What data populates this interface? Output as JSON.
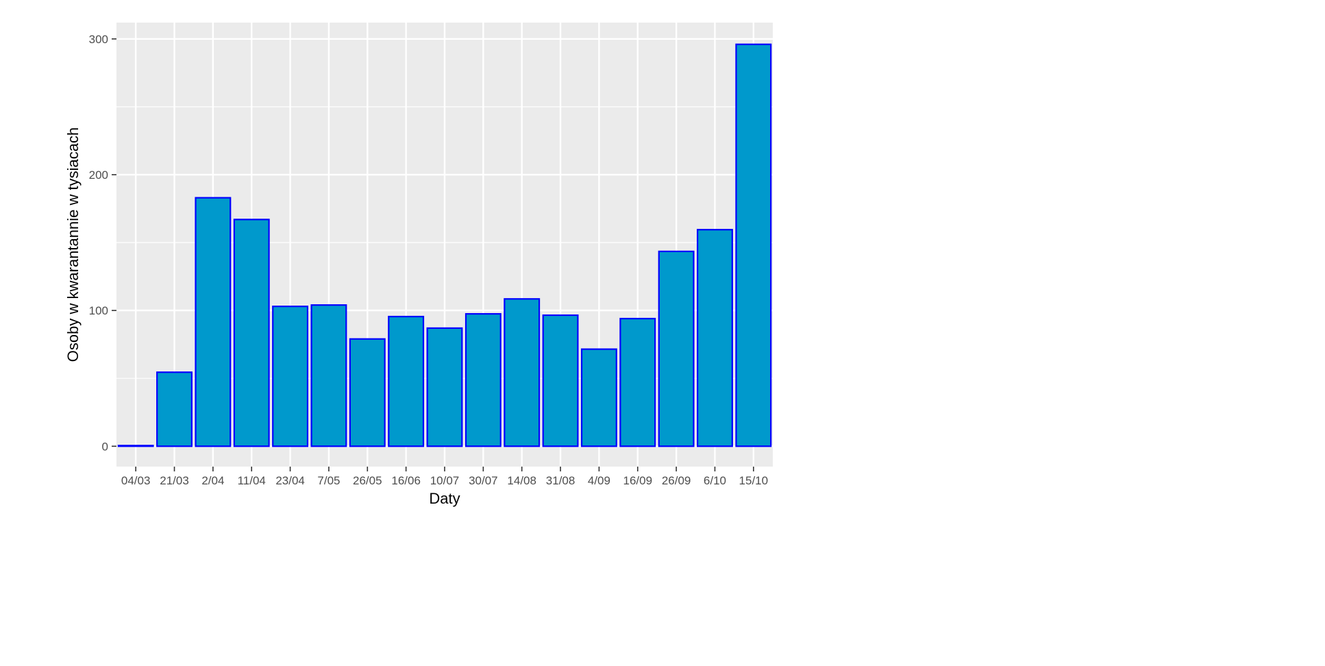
{
  "chart_data": {
    "type": "bar",
    "title": "",
    "xlabel": "Daty",
    "ylabel": "Osoby w kwarantannie w tysiacach",
    "categories": [
      "04/03",
      "21/03",
      "2/04",
      "11/04",
      "23/04",
      "7/05",
      "26/05",
      "16/06",
      "10/07",
      "30/07",
      "14/08",
      "31/08",
      "4/09",
      "16/09",
      "26/09",
      "6/10",
      "15/10"
    ],
    "values": [
      0.5,
      54.5,
      183,
      167,
      103,
      104,
      79,
      95.5,
      87,
      97.5,
      108.5,
      96.5,
      71.5,
      94,
      143.5,
      159.5,
      296
    ],
    "ylim": [
      -15,
      312
    ],
    "yticks": [
      0,
      100,
      200,
      300
    ],
    "grid": true,
    "legend": "none",
    "colors": {
      "panel": "#ebebeb",
      "grid": "#ffffff",
      "bar_fill": "#0099cc",
      "bar_stroke": "#0000ff"
    }
  }
}
